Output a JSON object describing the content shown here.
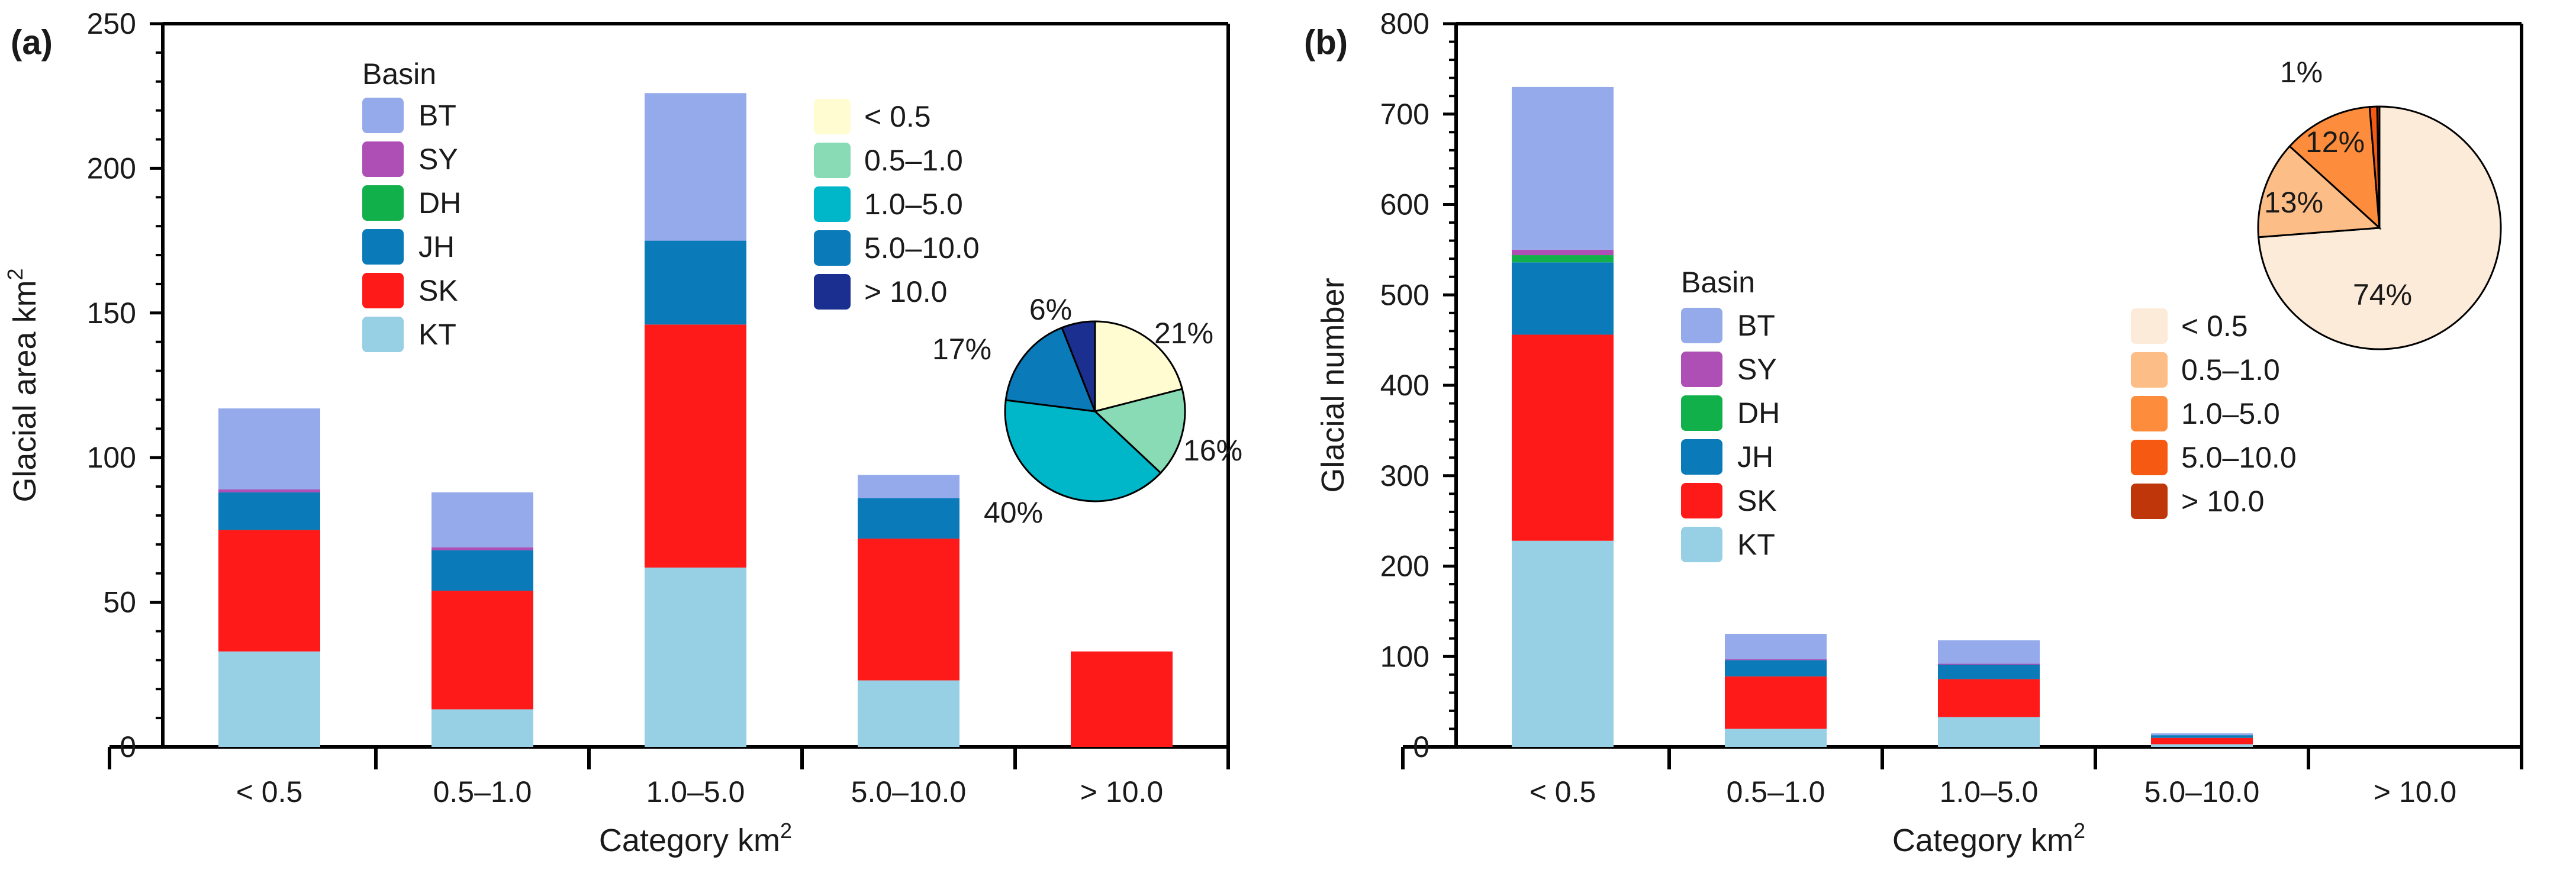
{
  "chart_data": [
    {
      "type": "bar",
      "stacked": true,
      "panel_label": "(a)",
      "title": "",
      "xlabel": "Category km",
      "xlabel_sup": "2",
      "ylabel": "Glacial area km",
      "ylabel_sup": "2",
      "ylim": [
        0,
        250
      ],
      "yticks": [
        "0",
        "50",
        "100",
        "150",
        "200",
        "250"
      ],
      "grid": false,
      "categories": [
        "< 0.5",
        "0.5–1.0",
        "1.0–5.0",
        "5.0–10.0",
        "> 10.0"
      ],
      "series": [
        {
          "name": "KT",
          "color": "#97cfe4",
          "values": [
            33,
            13,
            62,
            23,
            0
          ]
        },
        {
          "name": "SK",
          "color": "#ff1a1a",
          "values": [
            42,
            41,
            84,
            49,
            33
          ]
        },
        {
          "name": "JH",
          "color": "#0a7ab8",
          "values": [
            13,
            14,
            29,
            14,
            0
          ]
        },
        {
          "name": "DH",
          "color": "#12b04a",
          "values": [
            0,
            0,
            0,
            0,
            0
          ]
        },
        {
          "name": "SY",
          "color": "#ad4fb5",
          "values": [
            1,
            1,
            0,
            0,
            0
          ]
        },
        {
          "name": "BT",
          "color": "#94aaeb",
          "values": [
            28,
            19,
            51,
            8,
            0
          ]
        }
      ],
      "legend_title": "Basin",
      "legend_order": [
        "BT",
        "SY",
        "DH",
        "JH",
        "SK",
        "KT"
      ],
      "legend_position": "top-left",
      "inset_pie": {
        "legend_position": "top-right",
        "slices": [
          {
            "label": "< 0.5",
            "color": "#fefcd0",
            "value": 21,
            "text": "21%"
          },
          {
            "label": "0.5–1.0",
            "color": "#88dbb5",
            "value": 16,
            "text": "16%"
          },
          {
            "label": "1.0–5.0",
            "color": "#00b6c9",
            "value": 40,
            "text": "40%"
          },
          {
            "label": "5.0–10.0",
            "color": "#0a7ab8",
            "value": 17,
            "text": "17%"
          },
          {
            "label": "> 10.0",
            "color": "#1a2f8f",
            "value": 6,
            "text": "6%"
          }
        ]
      }
    },
    {
      "type": "bar",
      "stacked": true,
      "panel_label": "(b)",
      "title": "",
      "xlabel": "Category km",
      "xlabel_sup": "2",
      "ylabel": "Glacial number",
      "ylim": [
        0,
        800
      ],
      "yticks": [
        "0",
        "100",
        "200",
        "300",
        "400",
        "500",
        "600",
        "700",
        "800"
      ],
      "grid": false,
      "categories": [
        "< 0.5",
        "0.5–1.0",
        "1.0–5.0",
        "5.0–10.0",
        "> 10.0"
      ],
      "series": [
        {
          "name": "KT",
          "color": "#97cfe4",
          "values": [
            228,
            20,
            33,
            3,
            0
          ]
        },
        {
          "name": "SK",
          "color": "#ff1a1a",
          "values": [
            228,
            58,
            42,
            7,
            0
          ]
        },
        {
          "name": "JH",
          "color": "#0a7ab8",
          "values": [
            80,
            18,
            16,
            3,
            0
          ]
        },
        {
          "name": "DH",
          "color": "#12b04a",
          "values": [
            8,
            0,
            0,
            0,
            0
          ]
        },
        {
          "name": "SY",
          "color": "#ad4fb5",
          "values": [
            6,
            1,
            1,
            0,
            0
          ]
        },
        {
          "name": "BT",
          "color": "#94aaeb",
          "values": [
            180,
            28,
            26,
            2,
            0
          ]
        }
      ],
      "legend_title": "Basin",
      "legend_order": [
        "BT",
        "SY",
        "DH",
        "JH",
        "SK",
        "KT"
      ],
      "legend_position": "center-left",
      "inset_pie": {
        "legend_position": "center-right",
        "slices": [
          {
            "label": "< 0.5",
            "color": "#fdebd9",
            "value": 74,
            "text": "74%"
          },
          {
            "label": "0.5–1.0",
            "color": "#fdbd87",
            "value": 13,
            "text": "13%"
          },
          {
            "label": "1.0–5.0",
            "color": "#fd8d3c",
            "value": 12,
            "text": "12%"
          },
          {
            "label": "5.0–10.0",
            "color": "#f65a12",
            "value": 1,
            "text": "1%"
          },
          {
            "label": "> 10.0",
            "color": "#c0360b",
            "value": 0.3,
            "text": ""
          }
        ]
      }
    }
  ]
}
